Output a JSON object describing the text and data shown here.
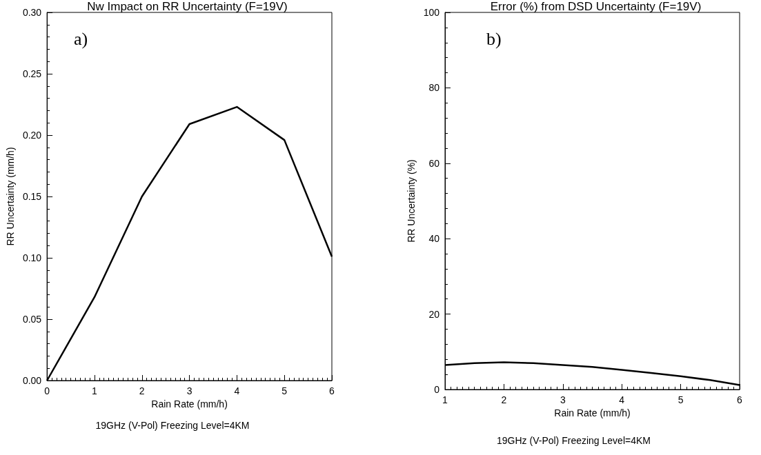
{
  "chart_data": [
    {
      "type": "line",
      "title": "Nw Impact on RR Uncertainty (F=19V)",
      "xlabel": "Rain Rate (mm/h)",
      "ylabel": "RR Uncertainty (mm/h)",
      "annotations": [
        "a)",
        "19GHz (V-Pol) Freezing Level=4KM"
      ],
      "x": [
        0,
        1,
        2,
        3,
        4,
        5,
        6
      ],
      "series": [
        {
          "color": "#000000",
          "values": [
            0,
            0.068,
            0.15,
            0.209,
            0.223,
            0.196,
            0.101
          ]
        }
      ],
      "xlim": [
        0,
        6
      ],
      "xticks": [
        0,
        1,
        2,
        3,
        4,
        5,
        6
      ],
      "ylim": [
        0,
        0.3
      ],
      "yticks": [
        {
          "value": 0,
          "label": "0.00"
        },
        {
          "value": 0.05,
          "label": "0.05"
        },
        {
          "value": 0.1,
          "label": "0.10"
        },
        {
          "value": 0.15,
          "label": "0.15"
        },
        {
          "value": 0.2,
          "label": "0.20"
        },
        {
          "value": 0.25,
          "label": "0.25"
        },
        {
          "value": 0.3,
          "label": "0.30"
        }
      ],
      "grid": false,
      "marker": "none",
      "line_style": "solid"
    },
    {
      "type": "line",
      "title": "Error (%) from DSD Uncertainty (F=19V)",
      "xlabel": "Rain Rate (mm/h)",
      "ylabel": "RR Uncertainty (%)",
      "annotations": [
        "b)",
        "19GHz (V-Pol) Freezing Level=4KM"
      ],
      "x": [
        1,
        1.5,
        2,
        2.5,
        3,
        3.5,
        4,
        4.5,
        5,
        5.5,
        6
      ],
      "series": [
        {
          "color": "#000000",
          "values": [
            6.5,
            7,
            7.2,
            7,
            6.5,
            6,
            5.2,
            4.4,
            3.5,
            2.5,
            1.2
          ]
        }
      ],
      "xlim": [
        1,
        6
      ],
      "xticks": [
        1,
        2,
        3,
        4,
        5,
        6
      ],
      "ylim": [
        0,
        100
      ],
      "yticks": [
        0,
        20,
        40,
        60,
        80,
        100
      ],
      "grid": false,
      "marker": "none",
      "line_style": "solid"
    }
  ]
}
